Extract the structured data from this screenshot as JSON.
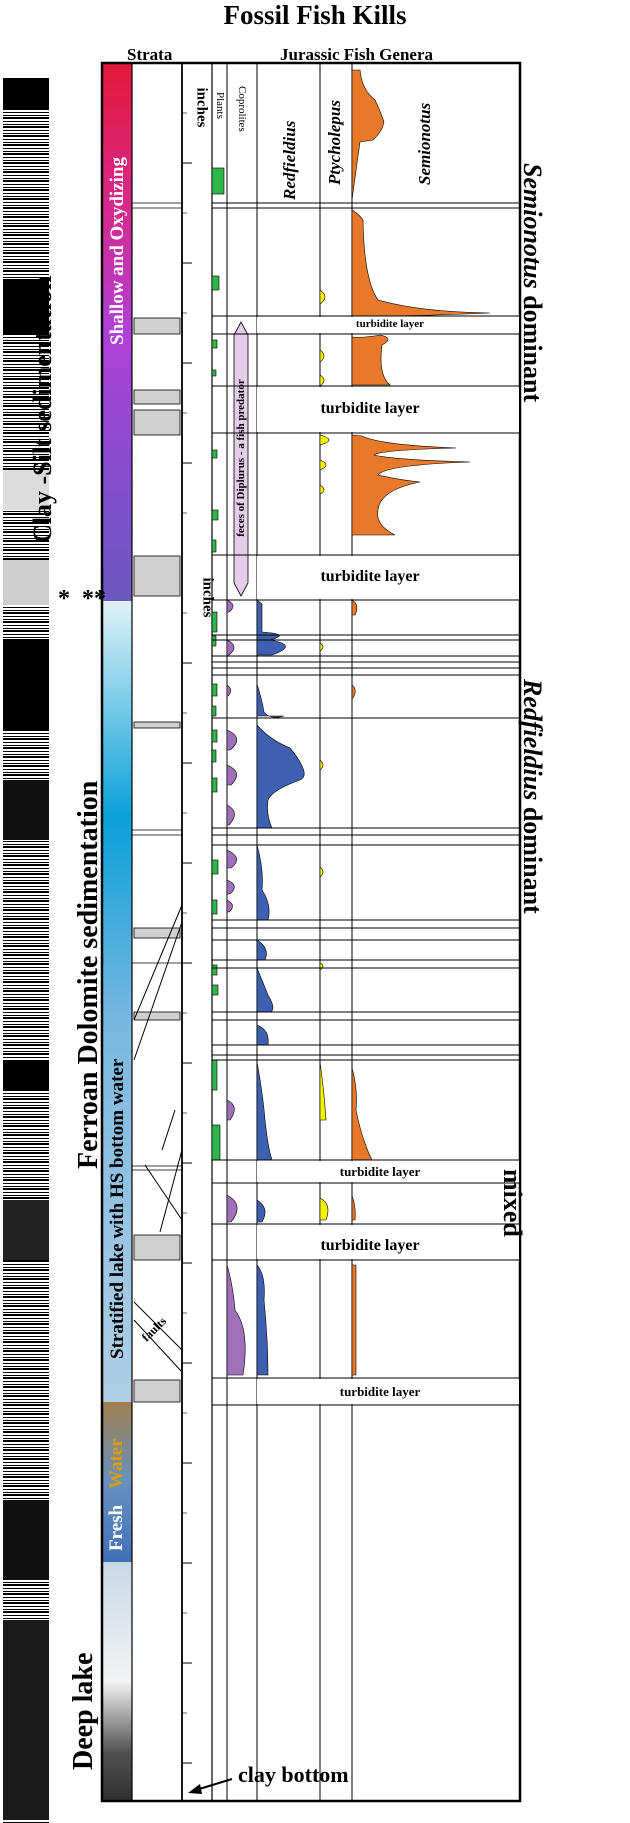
{
  "title": "Fossil Fish Kills",
  "headers": {
    "strata": "Strata",
    "genera": "Jurassic Fish Genera"
  },
  "columns": {
    "inches": "inches",
    "plants": "Plants",
    "coprolites": "Coprolites",
    "redfieldius": "Redfieldius",
    "ptycholepus": "Ptycholepus",
    "semionotus": "Semionotus"
  },
  "inches_lower": "inches",
  "sedimentation": {
    "clay_silt": "Clay -Silt  sedimentation",
    "ferroan": "Ferroan Dolomite sedimentation",
    "deep_lake": "Deep lake",
    "asterisks_1": "*",
    "asterisks_2": "**"
  },
  "environment": {
    "shallow": "Shallow and Oxydizing",
    "stratified": "Stratified lake with HS bottom water",
    "fresh": "Fresh",
    "water": "Water"
  },
  "turbidites": [
    "turbidite layer",
    "turbidite layer",
    "turbidite layer",
    "turbidite layer",
    "turbidite layer",
    "turbidite layer"
  ],
  "coprolite_note": "feces of Diplurus - a fish predator",
  "faults": "faults",
  "clay_bottom": "clay bottom",
  "dominance": {
    "semionotus_name": "Semionotus",
    "semionotus_word": " dominant",
    "redfieldius_name": "Redfieldius",
    "redfieldius_word": " dominant",
    "mixed": "mixed"
  },
  "colors": {
    "semionotus": "#e8782a",
    "redfieldius": "#3f5fb0",
    "ptycholepus": "#f2f200",
    "coprolites": "#a070b8",
    "plants": "#2fb54a",
    "turbidite_fill": "#d0d0d0"
  }
}
